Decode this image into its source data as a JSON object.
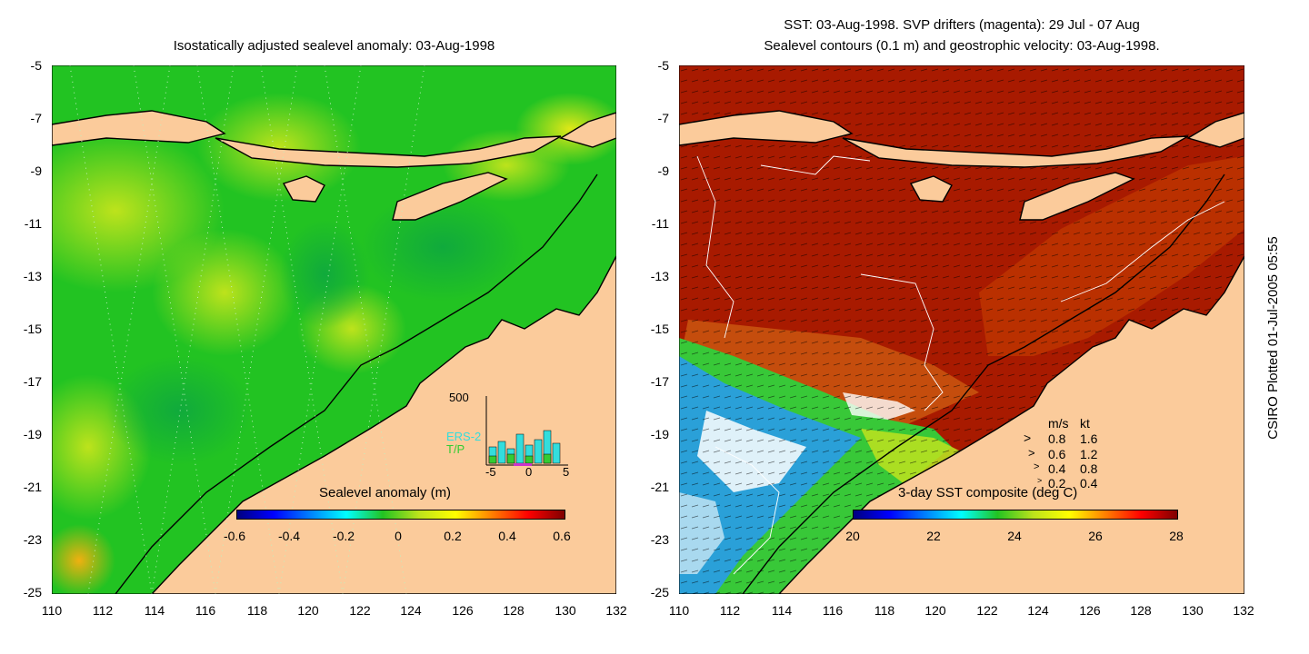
{
  "left_panel": {
    "title": "Isostatically adjusted sealevel anomaly: 03-Aug-1998",
    "y_ticks": [
      "-5",
      "-7",
      "-9",
      "-11",
      "-13",
      "-15",
      "-17",
      "-19",
      "-21",
      "-23",
      "-25"
    ],
    "x_ticks": [
      "110",
      "112",
      "114",
      "116",
      "118",
      "120",
      "122",
      "124",
      "126",
      "128",
      "130",
      "132"
    ],
    "colorbar": {
      "title": "Sealevel anomaly (m)",
      "labels": [
        "-0.6",
        "-0.4",
        "-0.2",
        "0",
        "0.2",
        "0.4",
        "0.6"
      ]
    },
    "histogram": {
      "ymax_label": "500",
      "series": [
        "ERS-2",
        "T/P"
      ],
      "x_labels": [
        "-5",
        "0",
        "5"
      ],
      "ers2_color": "#33dddd",
      "tp_color": "#33cc33"
    }
  },
  "right_panel": {
    "title_line1": "SST: 03-Aug-1998. SVP drifters (magenta): 29 Jul - 07 Aug",
    "title_line2": "Sealevel contours (0.1 m) and geostrophic velocity: 03-Aug-1998.",
    "y_ticks": [
      "-5",
      "-7",
      "-9",
      "-11",
      "-13",
      "-15",
      "-17",
      "-19",
      "-21",
      "-23",
      "-25"
    ],
    "x_ticks": [
      "110",
      "112",
      "114",
      "116",
      "118",
      "120",
      "122",
      "124",
      "126",
      "128",
      "130",
      "132"
    ],
    "colorbar": {
      "title": "3-day SST composite (deg C)",
      "labels": [
        "20",
        "22",
        "24",
        "26",
        "28"
      ]
    },
    "velocity_legend": {
      "header_ms": "m/s",
      "header_kt": "kt",
      "rows": [
        {
          "ms": "0.8",
          "kt": "1.6"
        },
        {
          "ms": "0.6",
          "kt": "1.2"
        },
        {
          "ms": "0.4",
          "kt": "0.8"
        },
        {
          "ms": "0.2",
          "kt": "0.4"
        }
      ]
    }
  },
  "side_label": "CSIRO Plotted 01-Jul-2005 05:55",
  "colors": {
    "land": "#fbcb9b",
    "ocean_sla": "#22c322",
    "sst_hot": "#a81a00"
  }
}
